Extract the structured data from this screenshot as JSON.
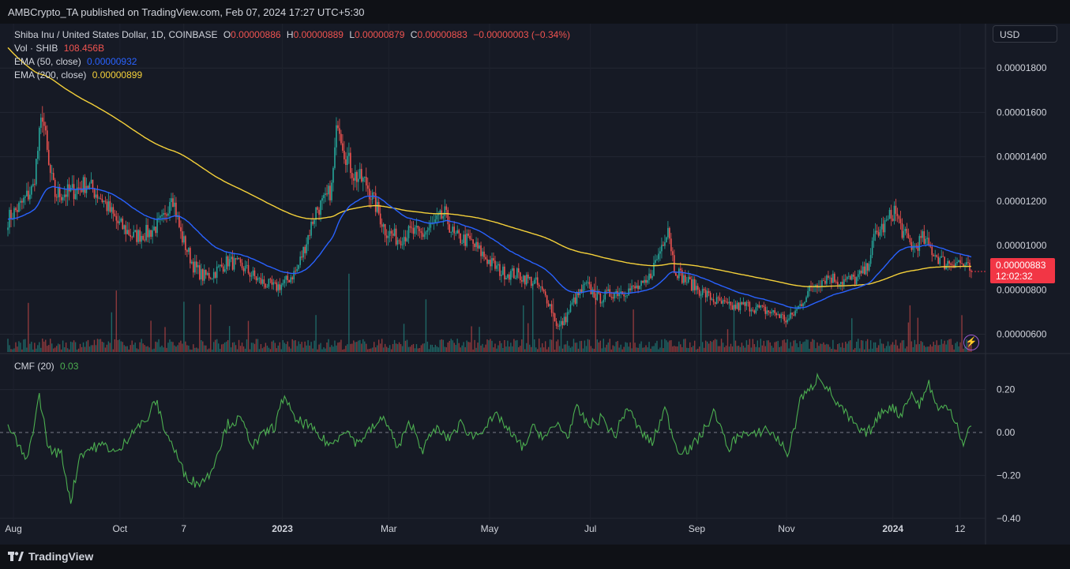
{
  "header": {
    "publisher": "AMBCrypto_TA published on TradingView.com, Feb 07, 2024 17:27 UTC+5:30"
  },
  "legend": {
    "symbol": "Shiba Inu / United States Dollar, 1D, COINBASE",
    "o_label": "O",
    "o_value": "0.00000886",
    "h_label": "H",
    "h_value": "0.00000889",
    "l_label": "L",
    "l_value": "0.00000879",
    "c_label": "C",
    "c_value": "0.00000883",
    "change": "−0.00000003 (−0.34%)",
    "vol_label": "Vol · SHIB",
    "vol_value": "108.456B",
    "ema50_label": "EMA (50, close)",
    "ema50_value": "0.00000932",
    "ema200_label": "EMA (200, close)",
    "ema200_value": "0.00000899",
    "cmf_label": "CMF (20)",
    "cmf_value": "0.03"
  },
  "toolbar": {
    "currency": "USD"
  },
  "price_tag": {
    "price": "0.00000883",
    "countdown": "12:02:32"
  },
  "footer": {
    "brand": "TradingView"
  },
  "colors": {
    "up": "#26a69a",
    "down": "#ef5350",
    "ema50": "#2962ff",
    "ema200": "#f5d13a",
    "cmf": "#4caf50",
    "background": "#161a25"
  },
  "chart_data": [
    {
      "type": "candlestick",
      "title": "Shiba Inu / United States Dollar, 1D, COINBASE",
      "x_tick_labels": [
        "Aug",
        "Oct",
        "7",
        "2023",
        "Mar",
        "May",
        "Jul",
        "Sep",
        "Nov",
        "2024",
        "12"
      ],
      "y_tick_labels": [
        "0.00000600",
        "0.00000800",
        "0.00001000",
        "0.00001200",
        "0.00001400",
        "0.00001600",
        "0.00001800"
      ],
      "ylim": [
        5.2e-06,
        2e-05
      ],
      "grid": true,
      "price_anchors": [
        [
          0,
          11.2
        ],
        [
          8,
          11.8
        ],
        [
          16,
          12.6
        ],
        [
          22,
          16.0
        ],
        [
          26,
          13.5
        ],
        [
          30,
          12.3
        ],
        [
          40,
          12.4
        ],
        [
          50,
          12.8
        ],
        [
          60,
          12.1
        ],
        [
          70,
          11.0
        ],
        [
          80,
          10.4
        ],
        [
          90,
          10.6
        ],
        [
          100,
          11.2
        ],
        [
          104,
          12.5
        ],
        [
          110,
          10.5
        ],
        [
          118,
          9.1
        ],
        [
          124,
          8.6
        ],
        [
          130,
          8.7
        ],
        [
          140,
          9.3
        ],
        [
          150,
          9.0
        ],
        [
          160,
          8.4
        ],
        [
          170,
          8.1
        ],
        [
          176,
          8.3
        ],
        [
          184,
          8.9
        ],
        [
          190,
          10.2
        ],
        [
          196,
          11.6
        ],
        [
          202,
          12.0
        ],
        [
          206,
          12.6
        ],
        [
          210,
          15.8
        ],
        [
          214,
          14.3
        ],
        [
          220,
          13.2
        ],
        [
          228,
          12.8
        ],
        [
          234,
          11.8
        ],
        [
          240,
          10.7
        ],
        [
          248,
          10.3
        ],
        [
          256,
          10.6
        ],
        [
          264,
          10.5
        ],
        [
          272,
          11.0
        ],
        [
          278,
          11.4
        ],
        [
          284,
          10.4
        ],
        [
          294,
          10.2
        ],
        [
          306,
          9.3
        ],
        [
          314,
          8.8
        ],
        [
          324,
          8.7
        ],
        [
          336,
          8.3
        ],
        [
          344,
          7.5
        ],
        [
          350,
          6.3
        ],
        [
          354,
          6.6
        ],
        [
          360,
          7.5
        ],
        [
          368,
          8.2
        ],
        [
          376,
          7.6
        ],
        [
          386,
          7.9
        ],
        [
          396,
          8.0
        ],
        [
          406,
          8.2
        ],
        [
          414,
          9.6
        ],
        [
          420,
          10.9
        ],
        [
          424,
          9.0
        ],
        [
          430,
          8.5
        ],
        [
          440,
          8.0
        ],
        [
          450,
          7.5
        ],
        [
          460,
          7.2
        ],
        [
          470,
          7.3
        ],
        [
          480,
          7.1
        ],
        [
          490,
          6.9
        ],
        [
          496,
          6.6
        ],
        [
          502,
          7.1
        ],
        [
          512,
          8.2
        ],
        [
          522,
          8.6
        ],
        [
          530,
          8.4
        ],
        [
          540,
          8.5
        ],
        [
          546,
          8.9
        ],
        [
          552,
          10.5
        ],
        [
          558,
          10.9
        ],
        [
          564,
          11.6
        ],
        [
          570,
          10.5
        ],
        [
          576,
          9.9
        ],
        [
          582,
          10.3
        ],
        [
          590,
          9.6
        ],
        [
          596,
          9.2
        ],
        [
          604,
          9.3
        ],
        [
          610,
          9.0
        ],
        [
          613,
          8.83
        ]
      ],
      "volume_label": "Vol · SHIB 108.456B",
      "ema": [
        {
          "name": "EMA (50, close)",
          "last": 9.32e-06
        },
        {
          "name": "EMA (200, close)",
          "last": 8.99e-06
        }
      ],
      "last_price": 8.83e-06,
      "countdown": "12:02:32"
    },
    {
      "type": "line",
      "title": "CMF (20)",
      "y_tick_labels": [
        "−0.40",
        "−0.20",
        "0.00",
        "0.20"
      ],
      "ylim": [
        -0.4,
        0.32
      ],
      "zero_line": "dashed",
      "anchors": [
        [
          0,
          0.03
        ],
        [
          6,
          -0.05
        ],
        [
          12,
          -0.14
        ],
        [
          20,
          0.17
        ],
        [
          26,
          -0.08
        ],
        [
          34,
          -0.1
        ],
        [
          40,
          -0.32
        ],
        [
          46,
          -0.1
        ],
        [
          54,
          -0.07
        ],
        [
          62,
          -0.06
        ],
        [
          70,
          -0.1
        ],
        [
          80,
          0.02
        ],
        [
          88,
          0.05
        ],
        [
          94,
          0.15
        ],
        [
          100,
          0.01
        ],
        [
          106,
          -0.08
        ],
        [
          112,
          -0.19
        ],
        [
          120,
          -0.24
        ],
        [
          128,
          -0.2
        ],
        [
          134,
          -0.08
        ],
        [
          140,
          0.04
        ],
        [
          148,
          0.06
        ],
        [
          156,
          -0.06
        ],
        [
          164,
          0.0
        ],
        [
          170,
          0.03
        ],
        [
          176,
          0.18
        ],
        [
          182,
          0.06
        ],
        [
          190,
          0.04
        ],
        [
          198,
          -0.02
        ],
        [
          206,
          -0.06
        ],
        [
          214,
          0.02
        ],
        [
          222,
          -0.05
        ],
        [
          232,
          0.02
        ],
        [
          240,
          0.07
        ],
        [
          248,
          -0.08
        ],
        [
          256,
          0.05
        ],
        [
          264,
          -0.08
        ],
        [
          272,
          0.02
        ],
        [
          280,
          -0.03
        ],
        [
          288,
          0.04
        ],
        [
          296,
          -0.02
        ],
        [
          304,
          0.03
        ],
        [
          312,
          0.08
        ],
        [
          320,
          -0.01
        ],
        [
          328,
          -0.07
        ],
        [
          334,
          0.02
        ],
        [
          342,
          -0.02
        ],
        [
          350,
          0.04
        ],
        [
          356,
          -0.02
        ],
        [
          362,
          0.11
        ],
        [
          370,
          0.03
        ],
        [
          378,
          0.07
        ],
        [
          386,
          -0.02
        ],
        [
          394,
          0.12
        ],
        [
          402,
          0.01
        ],
        [
          410,
          -0.05
        ],
        [
          418,
          0.11
        ],
        [
          426,
          -0.08
        ],
        [
          434,
          -0.08
        ],
        [
          442,
          0.0
        ],
        [
          450,
          0.1
        ],
        [
          458,
          -0.08
        ],
        [
          466,
          0.0
        ],
        [
          474,
          -0.02
        ],
        [
          482,
          0.02
        ],
        [
          490,
          -0.03
        ],
        [
          496,
          -0.1
        ],
        [
          500,
          0.0
        ],
        [
          504,
          0.16
        ],
        [
          510,
          0.19
        ],
        [
          516,
          0.27
        ],
        [
          522,
          0.2
        ],
        [
          528,
          0.13
        ],
        [
          536,
          0.06
        ],
        [
          544,
          -0.01
        ],
        [
          550,
          0.02
        ],
        [
          556,
          0.1
        ],
        [
          562,
          0.12
        ],
        [
          568,
          0.08
        ],
        [
          574,
          0.18
        ],
        [
          580,
          0.13
        ],
        [
          586,
          0.23
        ],
        [
          592,
          0.1
        ],
        [
          598,
          0.13
        ],
        [
          604,
          0.04
        ],
        [
          608,
          -0.07
        ],
        [
          612,
          0.03
        ],
        [
          613,
          0.03
        ]
      ]
    }
  ]
}
